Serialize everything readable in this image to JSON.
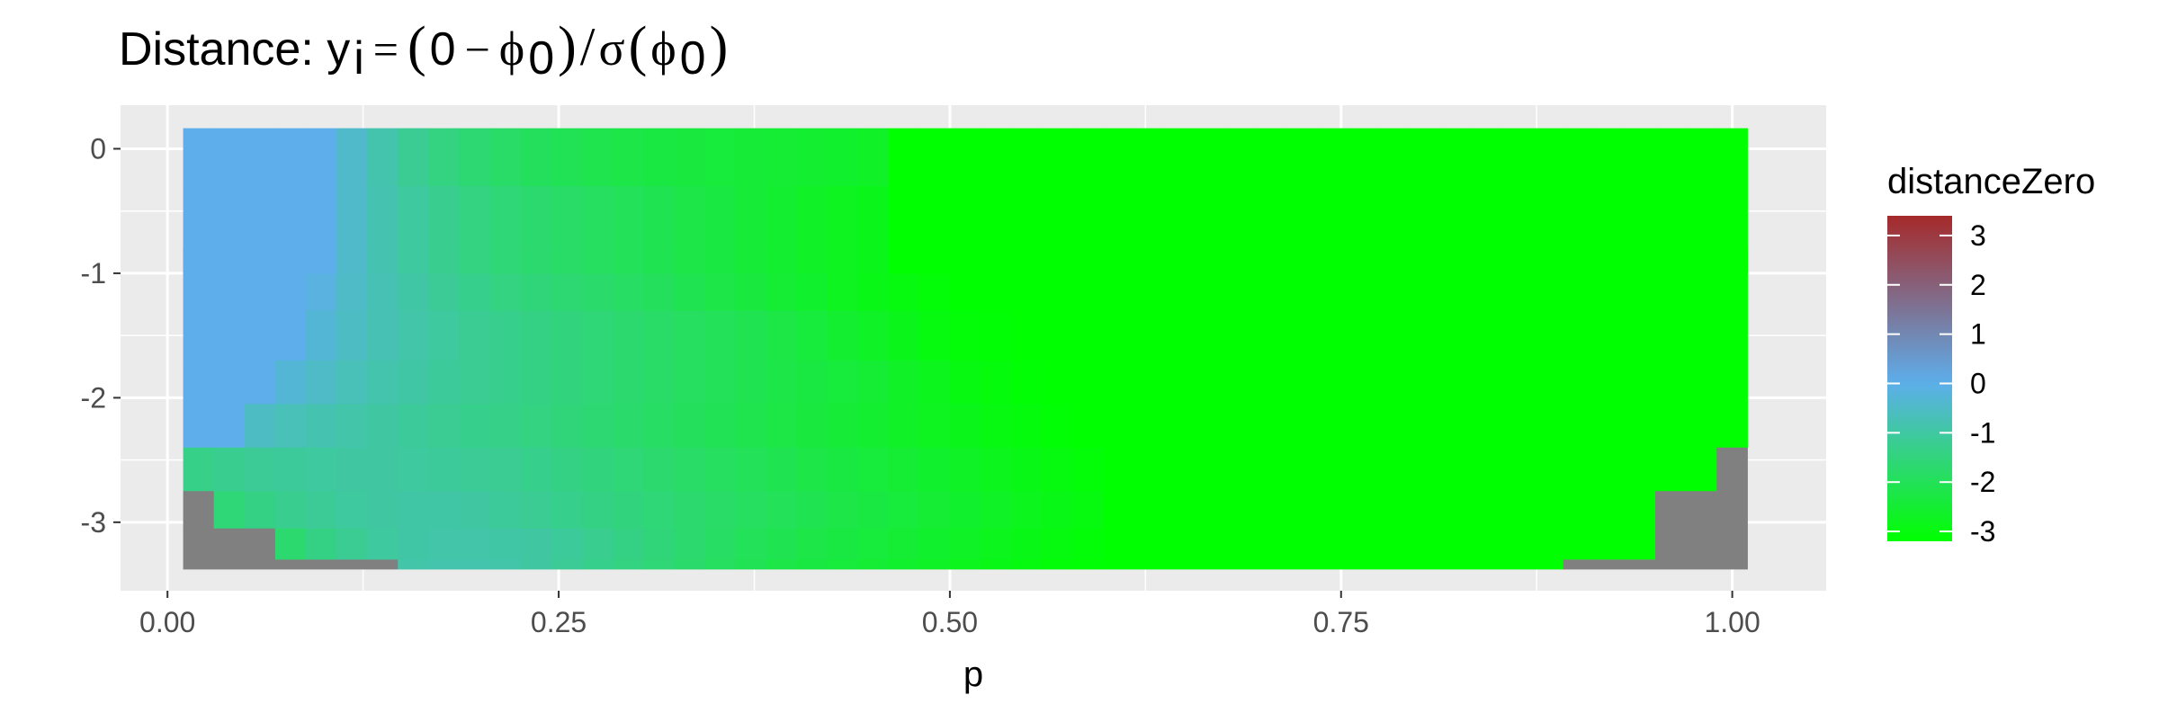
{
  "chart_data": {
    "type": "heatmap",
    "title": {
      "prefix": "Distance: ",
      "formula": {
        "lhs": "y",
        "lhs_sub": "i",
        "eq": "=",
        "open1": "(",
        "zero": "0",
        "minus": "−",
        "phi": "ϕ",
        "phi_sub": "0",
        "close1": ")",
        "slash": "/",
        "sigma": "σ",
        "open2": "(",
        "phi2": "ϕ",
        "phi2_sub": "0",
        "close2": ")"
      }
    },
    "xlabel": "p",
    "ylabel": "",
    "xlim": [
      -0.03,
      1.06
    ],
    "ylim": [
      -3.55,
      0.35
    ],
    "x_ticks": [
      0.0,
      0.25,
      0.5,
      0.75,
      1.0
    ],
    "x_tick_labels": [
      "0.00",
      "0.25",
      "0.50",
      "0.75",
      "1.00"
    ],
    "x_minor_ticks": [
      0.125,
      0.375,
      0.625,
      0.875
    ],
    "y_ticks": [
      0,
      -1,
      -2,
      -3
    ],
    "y_tick_labels": [
      "0",
      "-1",
      "-2",
      "-3"
    ],
    "y_minor_ticks": [
      -0.5,
      -1.5,
      -2.5
    ],
    "grid": true,
    "panel_background": "#ebebeb",
    "grid_color": "#ffffff",
    "na_color": "#808080",
    "cell": {
      "x_start": 0.01,
      "x_step": 0.0196,
      "count_x": 51,
      "y_top": 0.165,
      "y_step": 0.3513,
      "count_y": 10
    },
    "fill_scale": {
      "name": "distanceZero",
      "limits": [
        -3.2,
        3.4
      ],
      "breaks": [
        3,
        2,
        1,
        0,
        -1,
        -2,
        -3
      ],
      "break_labels": [
        "3",
        "2",
        "1",
        "0",
        "-1",
        "-2",
        "-3"
      ],
      "stops": [
        {
          "value": -3.2,
          "color": "#00ff00"
        },
        {
          "value": 0,
          "color": "#5daeeb"
        },
        {
          "value": 3.4,
          "color": "#a52a2a"
        }
      ]
    },
    "rows": [
      {
        "y": 0.0,
        "values": [
          0,
          0,
          0,
          0,
          0,
          -0.45,
          -0.85,
          -1.2,
          -1.45,
          -1.65,
          -1.8,
          -1.95,
          -2.05,
          -2.15,
          -2.2,
          -2.3,
          -2.35,
          -2.4,
          -2.45,
          -2.5,
          -2.55,
          -2.6,
          -2.65
        ]
      },
      {
        "y": -0.5,
        "values": [
          0,
          0,
          0,
          0,
          0,
          -0.45,
          -0.8,
          -1.05,
          -1.25,
          -1.45,
          -1.6,
          -1.7,
          -1.8,
          -1.9,
          -2.0,
          -2.1,
          -2.2,
          -2.3,
          -2.45,
          -2.55,
          -2.65,
          -2.75,
          -2.85
        ]
      },
      {
        "y": -1.0,
        "values": [
          0,
          0,
          0,
          0,
          -0.15,
          -0.5,
          -0.75,
          -0.95,
          -1.15,
          -1.3,
          -1.45,
          -1.55,
          -1.65,
          -1.75,
          -1.85,
          -1.95,
          -2.1,
          -2.2,
          -2.35,
          -2.5,
          -2.6,
          -2.75,
          -2.9,
          -3.0,
          -3.1
        ]
      },
      {
        "y": -1.5,
        "values": [
          0,
          0,
          0,
          0,
          -0.3,
          -0.55,
          -0.75,
          -0.9,
          -1.05,
          -1.2,
          -1.3,
          -1.4,
          -1.5,
          -1.6,
          -1.7,
          -1.8,
          -1.9,
          -2.0,
          -2.1,
          -2.25,
          -2.4,
          -2.55,
          -2.7,
          -2.85,
          -3.0,
          -3.1,
          -3.15
        ]
      },
      {
        "y": -1.8,
        "values": [
          0,
          0,
          0,
          -0.3,
          -0.5,
          -0.7,
          -0.85,
          -0.95,
          -1.1,
          -1.2,
          -1.3,
          -1.4,
          -1.5,
          -1.6,
          -1.7,
          -1.8,
          -1.9,
          -2.0,
          -2.1,
          -2.2,
          -2.3,
          -2.4,
          -2.5,
          -2.65,
          -2.8,
          -2.95,
          -3.05,
          -3.15
        ]
      },
      {
        "y": -2.2,
        "values": [
          0,
          0,
          -0.55,
          -0.7,
          -0.8,
          -0.9,
          -1.0,
          -1.1,
          -1.2,
          -1.3,
          -1.35,
          -1.45,
          -1.55,
          -1.65,
          -1.75,
          -1.85,
          -1.95,
          -2.05,
          -2.15,
          -2.25,
          -2.35,
          -2.45,
          -2.55,
          -2.65,
          -2.75,
          -2.85,
          -2.95,
          -3.05,
          -3.15
        ]
      },
      {
        "y": -2.5,
        "values": [
          -1.35,
          -1.25,
          -1.15,
          -1.1,
          -1.05,
          -1.0,
          -1.0,
          -1.05,
          -1.1,
          -1.15,
          -1.2,
          -1.3,
          -1.4,
          -1.5,
          -1.6,
          -1.7,
          -1.8,
          -1.9,
          -2.0,
          -2.1,
          -2.2,
          -2.3,
          -2.4,
          -2.5,
          -2.6,
          -2.7,
          -2.8,
          -2.9,
          -3.0,
          -3.1
        ]
      },
      {
        "y": -2.9,
        "values": [
          null,
          -1.6,
          -1.4,
          -1.25,
          -1.15,
          -1.05,
          -1.0,
          -0.95,
          -0.95,
          -1.0,
          -1.1,
          -1.2,
          -1.3,
          -1.4,
          -1.5,
          -1.6,
          -1.7,
          -1.8,
          -1.9,
          -2.0,
          -2.1,
          -2.2,
          -2.3,
          -2.4,
          -2.5,
          -2.6,
          -2.7,
          -2.8,
          -2.9,
          -3.0
        ]
      },
      {
        "y": -3.2,
        "values": [
          null,
          null,
          null,
          -1.7,
          -1.4,
          -1.2,
          -1.05,
          -0.95,
          -0.9,
          -0.9,
          -0.95,
          -1.0,
          -1.1,
          -1.25,
          -1.4,
          -1.55,
          -1.7,
          -1.85,
          -2.0,
          -2.1,
          -2.2,
          -2.3,
          -2.4,
          -2.5,
          -2.6,
          -2.7,
          -2.8,
          -2.9,
          -3.0,
          -3.1
        ]
      },
      {
        "y": -3.3,
        "values": [
          null,
          null,
          null,
          null,
          null,
          null,
          null,
          -0.9,
          -0.85,
          -0.85,
          -0.9,
          -1.0,
          -1.15,
          -1.3,
          -1.45,
          -1.6,
          -1.75,
          -1.9,
          -2.05,
          -2.2,
          -2.3,
          -2.4,
          -2.5,
          -2.6,
          -2.7,
          -2.8,
          -2.9,
          -3.0,
          -3.1,
          -3.15
        ]
      }
    ],
    "na_right": [
      {
        "y": -2.5,
        "from_col": 50
      },
      {
        "y": -2.9,
        "from_col": 48
      },
      {
        "y": -3.2,
        "from_col": 48
      },
      {
        "y": -3.3,
        "from_col": 45
      }
    ]
  }
}
